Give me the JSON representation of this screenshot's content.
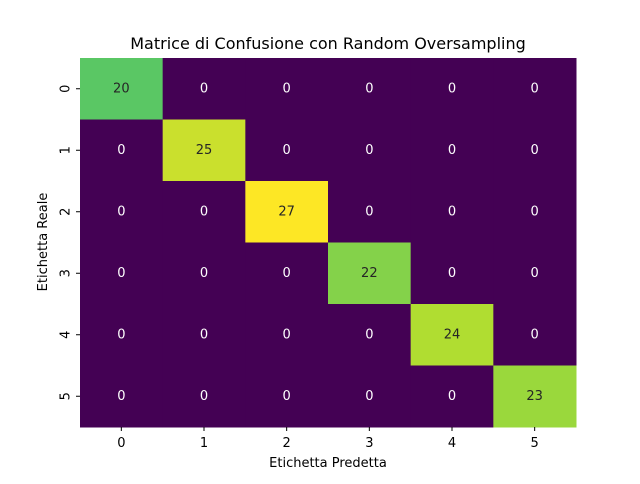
{
  "chart_data": {
    "type": "heatmap",
    "title": "Matrice di Confusione con Random Oversampling",
    "xlabel": "Etichetta Predetta",
    "ylabel": "Etichetta Reale",
    "x_categories": [
      "0",
      "1",
      "2",
      "3",
      "4",
      "5"
    ],
    "y_categories": [
      "0",
      "1",
      "2",
      "3",
      "4",
      "5"
    ],
    "values": [
      [
        20,
        0,
        0,
        0,
        0,
        0
      ],
      [
        0,
        25,
        0,
        0,
        0,
        0
      ],
      [
        0,
        0,
        27,
        0,
        0,
        0
      ],
      [
        0,
        0,
        0,
        22,
        0,
        0
      ],
      [
        0,
        0,
        0,
        0,
        24,
        0
      ],
      [
        0,
        0,
        0,
        0,
        0,
        23
      ]
    ],
    "value_range": [
      0,
      27
    ],
    "colormap": "viridis",
    "colorbar": false,
    "annotated": true
  }
}
